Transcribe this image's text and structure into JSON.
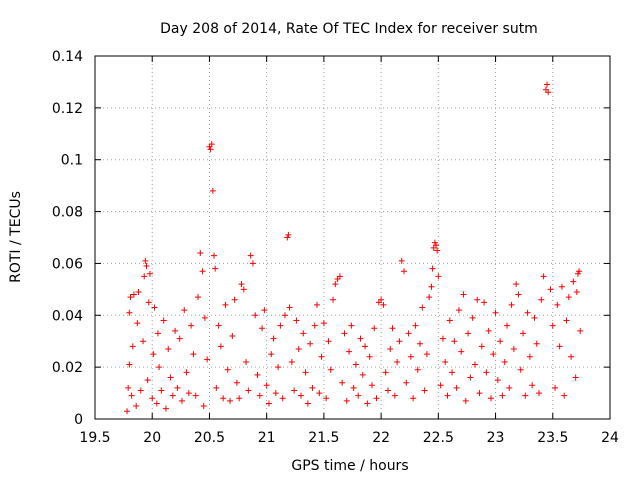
{
  "chart_data": {
    "type": "scatter",
    "title": "Day 208 of 2014, Rate Of TEC Index for receiver sutm",
    "xlabel": "GPS time / hours",
    "ylabel": "ROTI / TECUs",
    "xlim": [
      19.5,
      24
    ],
    "ylim": [
      0,
      0.14
    ],
    "xticks": [
      19.5,
      20,
      20.5,
      21,
      21.5,
      22,
      22.5,
      23,
      23.5,
      24
    ],
    "xtick_labels": [
      "19.5",
      "20",
      "20.5",
      "21",
      "21.5",
      "22",
      "22.5",
      "23",
      "23.5",
      "24"
    ],
    "yticks": [
      0,
      0.02,
      0.04,
      0.06,
      0.08,
      0.1,
      0.12,
      0.14
    ],
    "ytick_labels": [
      "0",
      "0.02",
      "0.04",
      "0.06",
      "0.08",
      "0.1",
      "0.12",
      "0.14"
    ],
    "grid": true,
    "marker": "+",
    "marker_color": "#ff0000",
    "series": [
      {
        "name": "ROTI",
        "points": [
          [
            19.78,
            0.003
          ],
          [
            19.79,
            0.012
          ],
          [
            19.8,
            0.021
          ],
          [
            19.8,
            0.041
          ],
          [
            19.81,
            0.047
          ],
          [
            19.82,
            0.009
          ],
          [
            19.83,
            0.028
          ],
          [
            19.84,
            0.048
          ],
          [
            19.86,
            0.005
          ],
          [
            19.87,
            0.037
          ],
          [
            19.88,
            0.049
          ],
          [
            19.9,
            0.011
          ],
          [
            19.92,
            0.03
          ],
          [
            19.93,
            0.055
          ],
          [
            19.94,
            0.061
          ],
          [
            19.95,
            0.059
          ],
          [
            19.96,
            0.015
          ],
          [
            19.97,
            0.045
          ],
          [
            19.98,
            0.056
          ],
          [
            20.0,
            0.008
          ],
          [
            20.01,
            0.025
          ],
          [
            20.02,
            0.043
          ],
          [
            20.04,
            0.006
          ],
          [
            20.05,
            0.033
          ],
          [
            20.06,
            0.02
          ],
          [
            20.08,
            0.011
          ],
          [
            20.1,
            0.038
          ],
          [
            20.12,
            0.004
          ],
          [
            20.14,
            0.027
          ],
          [
            20.16,
            0.016
          ],
          [
            20.18,
            0.009
          ],
          [
            20.2,
            0.034
          ],
          [
            20.22,
            0.012
          ],
          [
            20.24,
            0.031
          ],
          [
            20.26,
            0.007
          ],
          [
            20.28,
            0.042
          ],
          [
            20.3,
            0.018
          ],
          [
            20.32,
            0.01
          ],
          [
            20.34,
            0.036
          ],
          [
            20.36,
            0.025
          ],
          [
            20.38,
            0.009
          ],
          [
            20.4,
            0.047
          ],
          [
            20.42,
            0.064
          ],
          [
            20.44,
            0.057
          ],
          [
            20.45,
            0.005
          ],
          [
            20.46,
            0.039
          ],
          [
            20.48,
            0.023
          ],
          [
            20.5,
            0.105
          ],
          [
            20.51,
            0.104
          ],
          [
            20.52,
            0.106
          ],
          [
            20.53,
            0.088
          ],
          [
            20.54,
            0.063
          ],
          [
            20.55,
            0.058
          ],
          [
            20.56,
            0.012
          ],
          [
            20.58,
            0.036
          ],
          [
            20.6,
            0.028
          ],
          [
            20.62,
            0.008
          ],
          [
            20.64,
            0.044
          ],
          [
            20.66,
            0.019
          ],
          [
            20.68,
            0.007
          ],
          [
            20.7,
            0.032
          ],
          [
            20.72,
            0.046
          ],
          [
            20.74,
            0.014
          ],
          [
            20.76,
            0.008
          ],
          [
            20.78,
            0.052
          ],
          [
            20.8,
            0.05
          ],
          [
            20.82,
            0.022
          ],
          [
            20.84,
            0.011
          ],
          [
            20.86,
            0.063
          ],
          [
            20.88,
            0.06
          ],
          [
            20.9,
            0.04
          ],
          [
            20.92,
            0.017
          ],
          [
            20.94,
            0.009
          ],
          [
            20.96,
            0.035
          ],
          [
            20.98,
            0.042
          ],
          [
            21.0,
            0.013
          ],
          [
            21.02,
            0.006
          ],
          [
            21.04,
            0.025
          ],
          [
            21.06,
            0.031
          ],
          [
            21.08,
            0.01
          ],
          [
            21.1,
            0.02
          ],
          [
            21.12,
            0.036
          ],
          [
            21.14,
            0.008
          ],
          [
            21.16,
            0.04
          ],
          [
            21.18,
            0.07
          ],
          [
            21.19,
            0.071
          ],
          [
            21.2,
            0.043
          ],
          [
            21.22,
            0.022
          ],
          [
            21.24,
            0.011
          ],
          [
            21.26,
            0.038
          ],
          [
            21.28,
            0.027
          ],
          [
            21.3,
            0.009
          ],
          [
            21.32,
            0.033
          ],
          [
            21.34,
            0.018
          ],
          [
            21.36,
            0.006
          ],
          [
            21.38,
            0.029
          ],
          [
            21.4,
            0.012
          ],
          [
            21.42,
            0.036
          ],
          [
            21.44,
            0.044
          ],
          [
            21.46,
            0.01
          ],
          [
            21.48,
            0.024
          ],
          [
            21.5,
            0.037
          ],
          [
            21.52,
            0.008
          ],
          [
            21.54,
            0.03
          ],
          [
            21.56,
            0.019
          ],
          [
            21.58,
            0.046
          ],
          [
            21.6,
            0.052
          ],
          [
            21.62,
            0.054
          ],
          [
            21.64,
            0.055
          ],
          [
            21.66,
            0.014
          ],
          [
            21.68,
            0.033
          ],
          [
            21.7,
            0.007
          ],
          [
            21.72,
            0.026
          ],
          [
            21.74,
            0.036
          ],
          [
            21.76,
            0.012
          ],
          [
            21.78,
            0.021
          ],
          [
            21.8,
            0.009
          ],
          [
            21.82,
            0.031
          ],
          [
            21.84,
            0.017
          ],
          [
            21.86,
            0.028
          ],
          [
            21.88,
            0.006
          ],
          [
            21.9,
            0.024
          ],
          [
            21.92,
            0.013
          ],
          [
            21.94,
            0.035
          ],
          [
            21.96,
            0.008
          ],
          [
            21.98,
            0.045
          ],
          [
            22.0,
            0.046
          ],
          [
            22.02,
            0.044
          ],
          [
            22.04,
            0.018
          ],
          [
            22.06,
            0.011
          ],
          [
            22.08,
            0.027
          ],
          [
            22.1,
            0.035
          ],
          [
            22.12,
            0.009
          ],
          [
            22.14,
            0.022
          ],
          [
            22.16,
            0.03
          ],
          [
            22.18,
            0.061
          ],
          [
            22.2,
            0.057
          ],
          [
            22.22,
            0.014
          ],
          [
            22.24,
            0.033
          ],
          [
            22.26,
            0.024
          ],
          [
            22.28,
            0.008
          ],
          [
            22.3,
            0.036
          ],
          [
            22.32,
            0.019
          ],
          [
            22.34,
            0.029
          ],
          [
            22.36,
            0.043
          ],
          [
            22.38,
            0.011
          ],
          [
            22.4,
            0.025
          ],
          [
            22.42,
            0.047
          ],
          [
            22.44,
            0.051
          ],
          [
            22.45,
            0.058
          ],
          [
            22.46,
            0.066
          ],
          [
            22.47,
            0.068
          ],
          [
            22.48,
            0.067
          ],
          [
            22.49,
            0.065
          ],
          [
            22.5,
            0.055
          ],
          [
            22.52,
            0.013
          ],
          [
            22.54,
            0.031
          ],
          [
            22.56,
            0.022
          ],
          [
            22.58,
            0.009
          ],
          [
            22.6,
            0.038
          ],
          [
            22.62,
            0.018
          ],
          [
            22.64,
            0.03
          ],
          [
            22.66,
            0.012
          ],
          [
            22.68,
            0.042
          ],
          [
            22.7,
            0.026
          ],
          [
            22.72,
            0.048
          ],
          [
            22.74,
            0.007
          ],
          [
            22.76,
            0.033
          ],
          [
            22.78,
            0.016
          ],
          [
            22.8,
            0.039
          ],
          [
            22.82,
            0.021
          ],
          [
            22.84,
            0.046
          ],
          [
            22.86,
            0.01
          ],
          [
            22.88,
            0.028
          ],
          [
            22.9,
            0.045
          ],
          [
            22.92,
            0.018
          ],
          [
            22.94,
            0.034
          ],
          [
            22.96,
            0.008
          ],
          [
            22.98,
            0.025
          ],
          [
            23.0,
            0.041
          ],
          [
            23.02,
            0.015
          ],
          [
            23.04,
            0.03
          ],
          [
            23.06,
            0.009
          ],
          [
            23.08,
            0.022
          ],
          [
            23.1,
            0.036
          ],
          [
            23.12,
            0.012
          ],
          [
            23.14,
            0.044
          ],
          [
            23.16,
            0.027
          ],
          [
            23.18,
            0.052
          ],
          [
            23.2,
            0.048
          ],
          [
            23.22,
            0.019
          ],
          [
            23.24,
            0.033
          ],
          [
            23.26,
            0.009
          ],
          [
            23.28,
            0.041
          ],
          [
            23.3,
            0.024
          ],
          [
            23.32,
            0.013
          ],
          [
            23.34,
            0.039
          ],
          [
            23.36,
            0.029
          ],
          [
            23.38,
            0.01
          ],
          [
            23.4,
            0.046
          ],
          [
            23.42,
            0.055
          ],
          [
            23.44,
            0.127
          ],
          [
            23.45,
            0.129
          ],
          [
            23.46,
            0.126
          ],
          [
            23.48,
            0.05
          ],
          [
            23.5,
            0.036
          ],
          [
            23.52,
            0.012
          ],
          [
            23.54,
            0.044
          ],
          [
            23.56,
            0.028
          ],
          [
            23.58,
            0.051
          ],
          [
            23.6,
            0.009
          ],
          [
            23.62,
            0.038
          ],
          [
            23.64,
            0.047
          ],
          [
            23.66,
            0.024
          ],
          [
            23.68,
            0.053
          ],
          [
            23.7,
            0.016
          ],
          [
            23.71,
            0.049
          ],
          [
            23.72,
            0.056
          ],
          [
            23.73,
            0.057
          ],
          [
            23.74,
            0.034
          ]
        ]
      }
    ]
  }
}
